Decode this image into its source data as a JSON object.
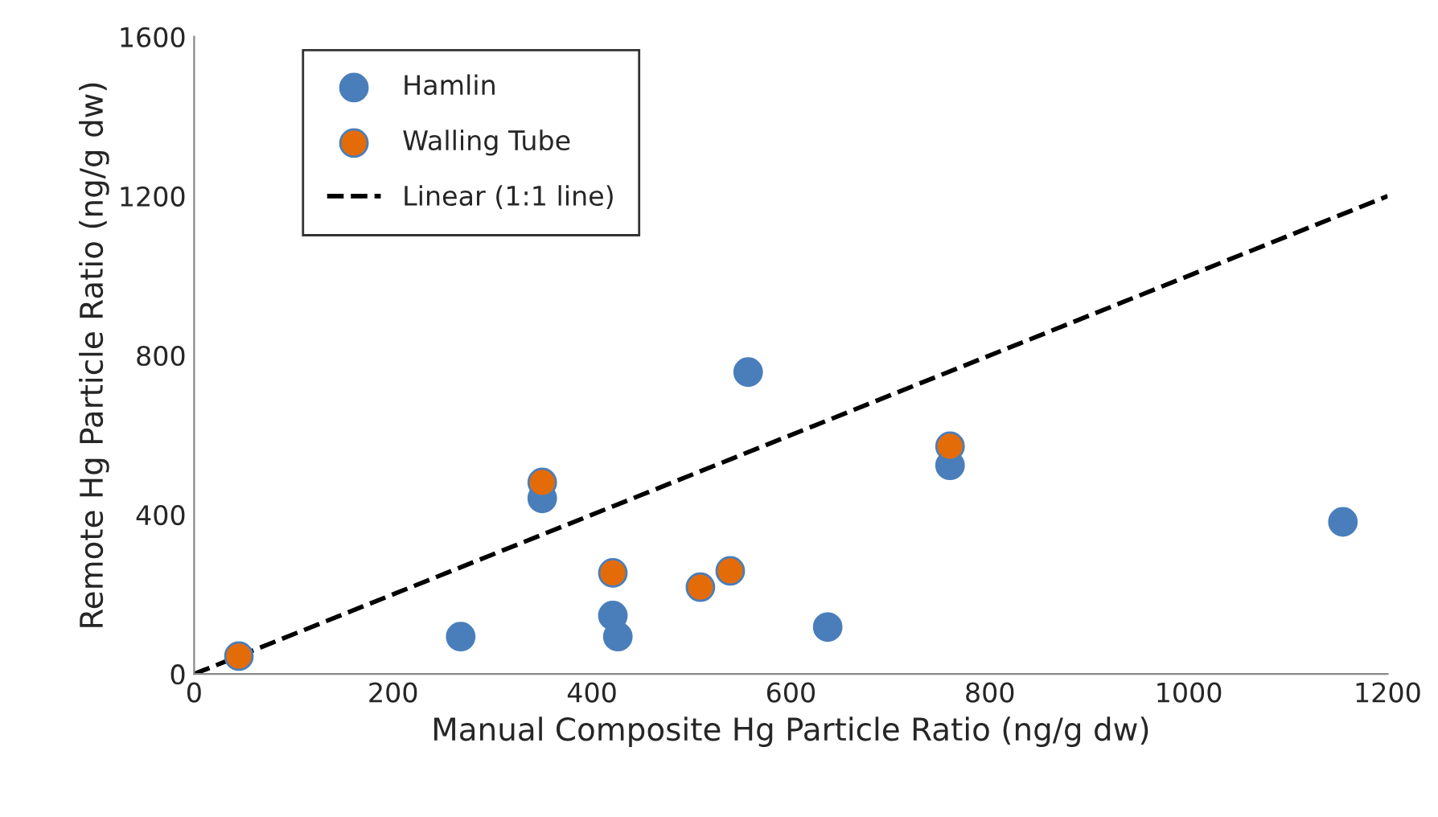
{
  "chart_data": {
    "type": "scatter",
    "xlabel": "Manual Composite Hg Particle Ratio (ng/g dw)",
    "ylabel": "Remote Hg Particle Ratio (ng/g dw)",
    "xlim": [
      0,
      1200
    ],
    "ylim": [
      0,
      1600
    ],
    "xticks": [
      0,
      200,
      400,
      600,
      800,
      1000,
      1200
    ],
    "yticks": [
      0,
      400,
      800,
      1200,
      1600
    ],
    "grid": false,
    "legend": "top left",
    "marker": "circle",
    "series": [
      {
        "name": "Hamlin",
        "color": "#4a7ebb",
        "x": [
          268,
          350,
          421,
          426,
          557,
          637,
          760,
          1155
        ],
        "values": [
          94,
          441,
          147,
          94,
          758,
          118,
          524,
          382
        ]
      },
      {
        "name": "Walling Tube",
        "color": "#e36c09",
        "x": [
          45,
          350,
          421,
          509,
          539,
          760
        ],
        "values": [
          45,
          481,
          254,
          218,
          259,
          572
        ]
      },
      {
        "name": "Linear (1:1 line)",
        "type": "line",
        "color": "#000000",
        "line_style": "dashed",
        "marker": "none",
        "x": [
          0,
          1200
        ],
        "values": [
          0,
          1200
        ]
      }
    ]
  }
}
